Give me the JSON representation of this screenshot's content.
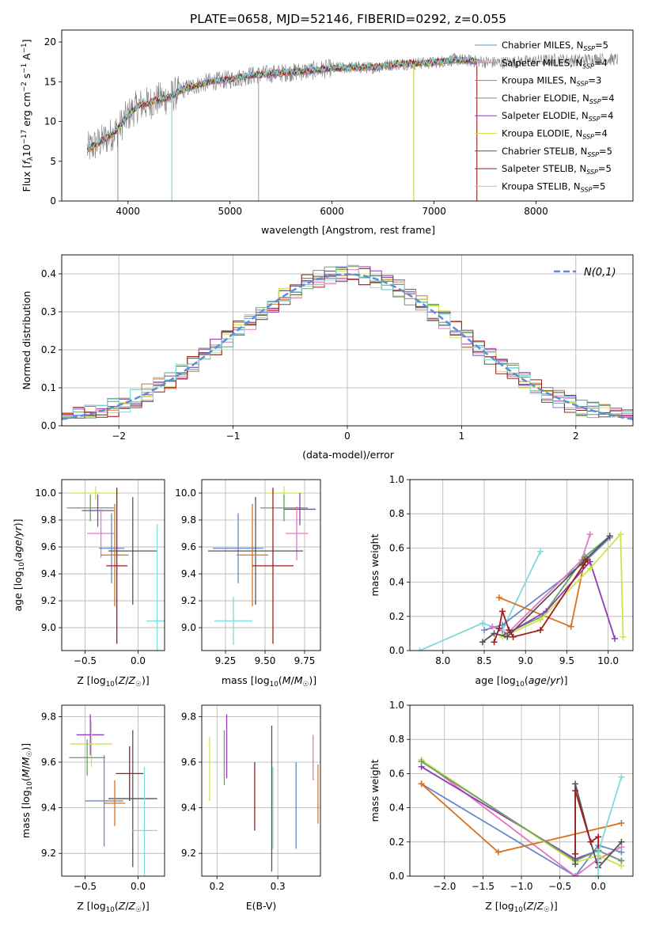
{
  "figure": {
    "title": "PLATE=0658, MJD=52146, FIBERID=0292, z=0.055"
  },
  "colors": {
    "Chabrier MILES": "#6688cc",
    "Salpeter MILES": "#e377c2",
    "Kroupa MILES": "#d9711c",
    "Chabrier ELODIE": "#6aa06a",
    "Salpeter ELODIE": "#8e3db3",
    "Kroupa ELODIE": "#cde44a",
    "Chabrier STELIB": "#555555",
    "Salpeter STELIB": "#a01c1c",
    "Kroupa STELIB": "#80dada",
    "data": "#808080",
    "gauss": "#5b8ed6"
  },
  "chart_data": [
    {
      "type": "line",
      "panel": "spectrum",
      "title": "PLATE=0658, MJD=52146, FIBERID=0292, z=0.055",
      "xlabel": "wavelength [Angstrom, rest frame]",
      "ylabel": "Flux [f_λ10^-17 erg cm^-2 s^-1 A^-1]",
      "xlim": [
        3350,
        8950
      ],
      "ylim": [
        0,
        21.5
      ],
      "xticks": [
        4000,
        5000,
        6000,
        7000,
        8000
      ],
      "yticks": [
        0,
        5,
        10,
        15,
        20
      ],
      "legend": "top-right",
      "legend_entries": [
        {
          "name": "Chabrier MILES",
          "nssp": 5
        },
        {
          "name": "Salpeter MILES",
          "nssp": 4
        },
        {
          "name": "Kroupa MILES",
          "nssp": 3
        },
        {
          "name": "Chabrier ELODIE",
          "nssp": 4
        },
        {
          "name": "Salpeter ELODIE",
          "nssp": 4
        },
        {
          "name": "Kroupa ELODIE",
          "nssp": 4
        },
        {
          "name": "Chabrier STELIB",
          "nssp": 5
        },
        {
          "name": "Salpeter STELIB",
          "nssp": 5
        },
        {
          "name": "Kroupa STELIB",
          "nssp": 5
        }
      ],
      "continuum": {
        "x": [
          3600,
          3700,
          3800,
          3900,
          4000,
          4100,
          4200,
          4300,
          4400,
          4500,
          4600,
          4800,
          5000,
          5200,
          5400,
          5600,
          5800,
          6000,
          6200,
          6400,
          6600,
          6800,
          7000,
          7200,
          7400,
          7600,
          7800,
          8000,
          8200,
          8400,
          8600,
          8800
        ],
        "y": [
          6.5,
          7.2,
          8.0,
          9.0,
          10.8,
          12.0,
          12.3,
          12.8,
          13.0,
          13.8,
          14.3,
          15.0,
          15.3,
          15.8,
          16.0,
          16.2,
          16.4,
          16.7,
          16.8,
          16.8,
          17.2,
          17.3,
          17.4,
          17.8,
          17.6,
          17.4,
          17.5,
          17.6,
          17.8,
          17.7,
          17.9,
          17.8
        ]
      },
      "model_range": [
        3600,
        7420
      ],
      "spikes": [
        {
          "x": 3900,
          "y": 0
        },
        {
          "x": 4430,
          "y": 0
        },
        {
          "x": 5280,
          "y": 0
        },
        {
          "x": 6800,
          "y": 0
        },
        {
          "x": 7420,
          "y": 0
        }
      ]
    },
    {
      "type": "line",
      "panel": "residuals",
      "xlabel": "(data-model)/error",
      "ylabel": "Normed distribution",
      "xlim": [
        -2.5,
        2.5
      ],
      "ylim": [
        0,
        0.45
      ],
      "xticks": [
        -2,
        -1,
        0,
        1,
        2
      ],
      "yticks": [
        0.0,
        0.1,
        0.2,
        0.3,
        0.4
      ],
      "legend": "top-right",
      "gauss_label": "N(0,1)",
      "bin_width": 0.1
    },
    {
      "type": "scatter",
      "panel": "Z-age",
      "xlabel": "Z [log10(Z/Z☉)]",
      "ylabel": "age  [log10(age/yr)]",
      "xlim": [
        -0.72,
        0.25
      ],
      "ylim": [
        8.83,
        10.1
      ],
      "xticks": [
        -0.5,
        0.0
      ],
      "yticks": [
        9.0,
        9.2,
        9.4,
        9.6,
        9.8,
        10.0
      ],
      "points": [
        {
          "model": "Kroupa ELODIE",
          "x": -0.4,
          "y": 10.0,
          "xerr": 0.22,
          "yerr": 0.05
        },
        {
          "model": "Chabrier ELODIE",
          "x": -0.45,
          "y": 9.89,
          "xerr": 0.22,
          "yerr": 0.1
        },
        {
          "model": "Salpeter ELODIE",
          "x": -0.38,
          "y": 9.87,
          "xerr": 0.15,
          "yerr": 0.12
        },
        {
          "model": "Salpeter MILES",
          "x": -0.35,
          "y": 9.7,
          "xerr": 0.13,
          "yerr": 0.18
        },
        {
          "model": "Chabrier MILES",
          "x": -0.25,
          "y": 9.59,
          "xerr": 0.12,
          "yerr": 0.26
        },
        {
          "model": "Chabrier STELIB",
          "x": -0.05,
          "y": 9.57,
          "xerr": 0.23,
          "yerr": 0.4
        },
        {
          "model": "Kroupa MILES",
          "x": -0.22,
          "y": 9.54,
          "xerr": 0.13,
          "yerr": 0.38
        },
        {
          "model": "Salpeter STELIB",
          "x": -0.2,
          "y": 9.46,
          "xerr": 0.1,
          "yerr": 0.58
        },
        {
          "model": "Kroupa STELIB",
          "x": 0.18,
          "y": 9.05,
          "xerr": 0.1,
          "yerr": 0.72
        }
      ]
    },
    {
      "type": "scatter",
      "panel": "mass-age",
      "xlabel": "mass [log10(M/M☉)]",
      "xlim": [
        9.1,
        9.85
      ],
      "ylim": [
        8.83,
        10.1
      ],
      "xticks": [
        9.25,
        9.5,
        9.75
      ],
      "yticks": [
        9.0,
        9.2,
        9.4,
        9.6,
        9.8,
        10.0
      ],
      "points": [
        {
          "model": "Kroupa ELODIE",
          "x": 9.62,
          "y": 10.0,
          "xerr": 0.12,
          "yerr": 0.05
        },
        {
          "model": "Chabrier ELODIE",
          "x": 9.62,
          "y": 9.89,
          "xerr": 0.15,
          "yerr": 0.1
        },
        {
          "model": "Salpeter ELODIE",
          "x": 9.72,
          "y": 9.88,
          "xerr": 0.1,
          "yerr": 0.12
        },
        {
          "model": "Salpeter MILES",
          "x": 9.7,
          "y": 9.7,
          "xerr": 0.07,
          "yerr": 0.2
        },
        {
          "model": "Chabrier MILES",
          "x": 9.33,
          "y": 9.59,
          "xerr": 0.16,
          "yerr": 0.26
        },
        {
          "model": "Chabrier STELIB",
          "x": 9.44,
          "y": 9.57,
          "xerr": 0.3,
          "yerr": 0.4
        },
        {
          "model": "Kroupa MILES",
          "x": 9.42,
          "y": 9.54,
          "xerr": 0.1,
          "yerr": 0.38
        },
        {
          "model": "Salpeter STELIB",
          "x": 9.55,
          "y": 9.46,
          "xerr": 0.13,
          "yerr": 0.58
        },
        {
          "model": "Kroupa STELIB",
          "x": 9.3,
          "y": 9.05,
          "xerr": 0.12,
          "yerr": 0.18
        }
      ]
    },
    {
      "type": "line",
      "panel": "age-weight",
      "xlabel": "age  [log10(age/yr)]",
      "ylabel": "mass weight",
      "xlim": [
        7.6,
        10.3
      ],
      "ylim": [
        0,
        1
      ],
      "xticks": [
        8.0,
        8.5,
        9.0,
        9.5,
        10.0
      ],
      "yticks": [
        0.0,
        0.2,
        0.4,
        0.6,
        0.8,
        1.0
      ],
      "series": [
        {
          "model": "Kroupa STELIB",
          "x": [
            7.72,
            8.48,
            8.72,
            9.18
          ],
          "y": [
            0.0,
            0.16,
            0.12,
            0.58
          ]
        },
        {
          "model": "Chabrier MILES",
          "x": [
            8.5,
            8.72,
            9.72,
            10.02
          ],
          "y": [
            0.12,
            0.15,
            0.52,
            0.66
          ]
        },
        {
          "model": "Salpeter MILES",
          "x": [
            8.6,
            8.78,
            9.68,
            9.78
          ],
          "y": [
            0.14,
            0.1,
            0.53,
            0.68
          ]
        },
        {
          "model": "Kroupa MILES",
          "x": [
            8.68,
            9.55,
            9.72
          ],
          "y": [
            0.31,
            0.14,
            0.54
          ]
        },
        {
          "model": "Chabrier ELODIE",
          "x": [
            8.72,
            9.2,
            9.72,
            10.02
          ],
          "y": [
            0.09,
            0.2,
            0.55,
            0.67
          ]
        },
        {
          "model": "Salpeter ELODIE",
          "x": [
            8.75,
            9.25,
            9.78,
            10.08
          ],
          "y": [
            0.09,
            0.23,
            0.52,
            0.07
          ]
        },
        {
          "model": "Kroupa ELODIE",
          "x": [
            8.72,
            9.18,
            9.78,
            10.15,
            10.18
          ],
          "y": [
            0.08,
            0.18,
            0.48,
            0.68,
            0.08
          ]
        },
        {
          "model": "Chabrier STELIB",
          "x": [
            8.48,
            8.62,
            8.78,
            9.72,
            10.02
          ],
          "y": [
            0.05,
            0.1,
            0.08,
            0.53,
            0.67
          ]
        },
        {
          "model": "Salpeter STELIB",
          "x": [
            8.62,
            8.68,
            8.72,
            8.8,
            8.85,
            9.18,
            9.7,
            9.75
          ],
          "y": [
            0.05,
            0.13,
            0.23,
            0.12,
            0.08,
            0.12,
            0.5,
            0.53
          ]
        }
      ]
    },
    {
      "type": "scatter",
      "panel": "Z-mass",
      "xlabel": "Z [log10(Z/Z☉)]",
      "ylabel": "mass [log10(M/M☉)]",
      "xlim": [
        -0.72,
        0.25
      ],
      "ylim": [
        9.1,
        9.85
      ],
      "xticks": [
        -0.5,
        0.0
      ],
      "yticks": [
        9.2,
        9.4,
        9.6,
        9.8
      ],
      "points": [
        {
          "model": "Salpeter ELODIE",
          "x": -0.45,
          "y": 9.72,
          "xerr": 0.13,
          "yerr": 0.09
        },
        {
          "model": "Kroupa ELODIE",
          "x": -0.44,
          "y": 9.68,
          "xerr": 0.2,
          "yerr": 0.1
        },
        {
          "model": "Chabrier ELODIE",
          "x": -0.48,
          "y": 9.62,
          "xerr": 0.17,
          "yerr": 0.08
        },
        {
          "model": "Salpeter STELIB",
          "x": -0.08,
          "y": 9.55,
          "xerr": 0.13,
          "yerr": 0.12
        },
        {
          "model": "Chabrier STELIB",
          "x": -0.05,
          "y": 9.44,
          "xerr": 0.23,
          "yerr": 0.3
        },
        {
          "model": "Kroupa MILES",
          "x": -0.22,
          "y": 9.42,
          "xerr": 0.1,
          "yerr": 0.1
        },
        {
          "model": "Chabrier MILES",
          "x": -0.32,
          "y": 9.43,
          "xerr": 0.18,
          "yerr": 0.2
        },
        {
          "model": "Kroupa STELIB",
          "x": 0.06,
          "y": 9.3,
          "xerr": 0.12,
          "yerr": 0.28
        }
      ]
    },
    {
      "type": "scatter",
      "panel": "EBV-mass",
      "xlabel": "E(B-V)",
      "xlim": [
        0.175,
        0.37
      ],
      "ylim": [
        9.1,
        9.85
      ],
      "xticks": [
        0.2,
        0.3
      ],
      "yticks": [
        9.2,
        9.4,
        9.6,
        9.8
      ],
      "points": [
        {
          "model": "Kroupa ELODIE",
          "x": 0.188,
          "y": 9.57,
          "yerr": 0.14
        },
        {
          "model": "Chabrier ELODIE",
          "x": 0.212,
          "y": 9.62,
          "yerr": 0.12
        },
        {
          "model": "Salpeter ELODIE",
          "x": 0.216,
          "y": 9.67,
          "yerr": 0.14
        },
        {
          "model": "Salpeter STELIB",
          "x": 0.262,
          "y": 9.45,
          "yerr": 0.15
        },
        {
          "model": "Chabrier STELIB",
          "x": 0.29,
          "y": 9.44,
          "yerr": 0.32
        },
        {
          "model": "Kroupa STELIB",
          "x": 0.292,
          "y": 9.4,
          "yerr": 0.18
        },
        {
          "model": "Chabrier MILES",
          "x": 0.33,
          "y": 9.41,
          "yerr": 0.19
        },
        {
          "model": "Salpeter MILES",
          "x": 0.358,
          "y": 9.62,
          "yerr": 0.1
        },
        {
          "model": "Kroupa MILES",
          "x": 0.366,
          "y": 9.46,
          "yerr": 0.13
        }
      ]
    },
    {
      "type": "line",
      "panel": "Z-weight",
      "xlabel": "Z [log10(Z/Z☉)]",
      "ylabel": "mass weight",
      "xlim": [
        -2.45,
        0.45
      ],
      "ylim": [
        0,
        1
      ],
      "xticks": [
        -2.0,
        -1.5,
        -1.0,
        -0.5,
        0.0
      ],
      "yticks": [
        0.0,
        0.2,
        0.4,
        0.6,
        0.8,
        1.0
      ],
      "series": [
        {
          "model": "Chabrier MILES",
          "x": [
            -2.3,
            -0.3,
            0.0,
            0.3
          ],
          "y": [
            0.54,
            0.0,
            0.18,
            0.14
          ]
        },
        {
          "model": "Salpeter MILES",
          "x": [
            -2.3,
            -0.3,
            0.0,
            0.3
          ],
          "y": [
            0.68,
            0.0,
            0.1,
            0.17
          ]
        },
        {
          "model": "Kroupa MILES",
          "x": [
            -2.3,
            -1.3,
            0.3
          ],
          "y": [
            0.54,
            0.14,
            0.31
          ]
        },
        {
          "model": "Salpeter ELODIE",
          "x": [
            -2.3,
            -0.3,
            0.0,
            0.3
          ],
          "y": [
            0.64,
            0.1,
            0.15,
            0.09
          ]
        },
        {
          "model": "Kroupa ELODIE",
          "x": [
            -2.3,
            -0.3,
            0.0,
            0.3
          ],
          "y": [
            0.68,
            0.08,
            0.12,
            0.06
          ]
        },
        {
          "model": "Chabrier ELODIE",
          "x": [
            -2.3,
            -0.3,
            0.0,
            0.3
          ],
          "y": [
            0.67,
            0.09,
            0.15,
            0.09
          ]
        },
        {
          "model": "Chabrier STELIB",
          "x": [
            -0.3,
            -0.3,
            -0.1,
            0.0,
            0.3
          ],
          "y": [
            0.07,
            0.54,
            0.2,
            0.05,
            0.2
          ]
        },
        {
          "model": "Salpeter STELIB",
          "x": [
            -0.3,
            -0.3,
            -0.1,
            0.0,
            0.0
          ],
          "y": [
            0.13,
            0.5,
            0.2,
            0.23,
            0.08
          ]
        },
        {
          "model": "Kroupa STELIB",
          "x": [
            0.0,
            0.0,
            0.3
          ],
          "y": [
            0.0,
            0.14,
            0.58
          ]
        }
      ]
    }
  ]
}
